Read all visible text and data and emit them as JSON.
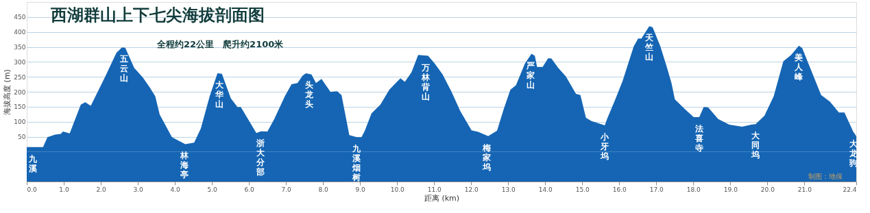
{
  "chart_data": {
    "type": "area",
    "title": "西湖群山上下七尖海拔剖面图",
    "subtitle": "全程约22公里　爬升约2100米",
    "xlabel": "距离 (km)",
    "ylabel": "海拔高度 (m)",
    "xlim": [
      0,
      22.4
    ],
    "ylim": [
      -100,
      500
    ],
    "grid": "y",
    "bands": [
      {
        "axis": "y",
        "from": -100,
        "to": 0,
        "color": "#1565b4"
      }
    ],
    "xticks": [
      {
        "value": 0,
        "label": "0.0"
      },
      {
        "value": 1,
        "label": "1.0"
      },
      {
        "value": 2,
        "label": "2.0"
      },
      {
        "value": 3,
        "label": "3.0"
      },
      {
        "value": 4,
        "label": "4.0"
      },
      {
        "value": 5,
        "label": "5.0"
      },
      {
        "value": 6,
        "label": "6.0"
      },
      {
        "value": 7,
        "label": "7.0"
      },
      {
        "value": 8,
        "label": "8.0"
      },
      {
        "value": 9,
        "label": "9.0"
      },
      {
        "value": 10,
        "label": "10.0"
      },
      {
        "value": 11,
        "label": "11.0"
      },
      {
        "value": 12,
        "label": "12.0"
      },
      {
        "value": 13,
        "label": "13.0"
      },
      {
        "value": 14,
        "label": "14.0"
      },
      {
        "value": 15,
        "label": "15.0"
      },
      {
        "value": 16,
        "label": "16.0"
      },
      {
        "value": 17,
        "label": "17.0"
      },
      {
        "value": 18,
        "label": "18.0"
      },
      {
        "value": 19,
        "label": "19.0"
      },
      {
        "value": 20,
        "label": "20.0"
      },
      {
        "value": 21,
        "label": "21.0"
      },
      {
        "value": 22.4,
        "label": "22.4"
      }
    ],
    "yticks": [
      50,
      100,
      150,
      200,
      250,
      300,
      350,
      400,
      450
    ],
    "series": [
      {
        "color": "#1565b4",
        "x": [
          0,
          0.17,
          0.44,
          0.56,
          0.77,
          0.92,
          0.98,
          1.16,
          1.46,
          1.58,
          1.73,
          1.88,
          2.12,
          2.42,
          2.57,
          2.66,
          2.9,
          3.14,
          3.32,
          3.47,
          3.59,
          3.92,
          4.28,
          4.52,
          4.7,
          4.94,
          5.15,
          5.27,
          5.51,
          5.69,
          5.78,
          6.2,
          6.32,
          6.5,
          6.68,
          6.97,
          7.15,
          7.31,
          7.45,
          7.54,
          7.69,
          7.81,
          7.96,
          8.2,
          8.38,
          8.5,
          8.71,
          8.91,
          9.04,
          9.13,
          9.31,
          9.55,
          9.79,
          10.09,
          10.21,
          10.39,
          10.57,
          10.69,
          10.84,
          11.02,
          11.23,
          11.47,
          11.71,
          12.01,
          12.19,
          12.46,
          12.7,
          12.88,
          13.06,
          13.21,
          13.45,
          13.63,
          13.72,
          13.78,
          13.93,
          14.08,
          14.17,
          14.35,
          14.56,
          14.83,
          14.95,
          15.1,
          15.25,
          15.61,
          15.67,
          15.88,
          16.09,
          16.39,
          16.51,
          16.6,
          16.81,
          16.9,
          17.11,
          17.29,
          17.41,
          17.5,
          17.77,
          18.01,
          18.16,
          18.28,
          18.4,
          18.67,
          18.97,
          19.32,
          19.56,
          19.68,
          19.92,
          20.17,
          20.43,
          20.64,
          20.85,
          20.94,
          21.18,
          21.45,
          21.69,
          21.93,
          22.08,
          22.32,
          22.4
        ],
        "values": [
          15,
          15,
          15,
          48,
          57,
          59,
          67,
          61,
          157,
          165,
          153,
          191,
          251,
          330,
          348,
          347,
          280,
          247,
          215,
          185,
          124,
          48,
          25,
          30,
          77,
          185,
          262,
          260,
          178,
          149,
          149,
          62,
          68,
          67,
          108,
          185,
          225,
          229,
          254,
          262,
          258,
          229,
          243,
          200,
          202,
          189,
          55,
          48,
          48,
          70,
          128,
          157,
          207,
          245,
          233,
          265,
          323,
          322,
          320,
          294,
          258,
          200,
          135,
          71,
          66,
          52,
          70,
          142,
          207,
          222,
          294,
          327,
          320,
          283,
          283,
          312,
          311,
          280,
          251,
          193,
          189,
          113,
          102,
          88,
          109,
          171,
          236,
          352,
          378,
          378,
          419,
          416,
          352,
          280,
          229,
          175,
          142,
          115,
          115,
          149,
          148,
          109,
          90,
          83,
          90,
          92,
          120,
          185,
          302,
          323,
          354,
          346,
          272,
          189,
          167,
          131,
          131,
          66,
          52
        ]
      }
    ],
    "annotations": [
      {
        "text": "九溪",
        "x": 0.17,
        "y": 15
      },
      {
        "text": "五云山",
        "x": 2.62,
        "y": 348
      },
      {
        "text": "林海亭",
        "x": 4.25,
        "y": 25
      },
      {
        "text": "大华山",
        "x": 5.2,
        "y": 262
      },
      {
        "text": "浙大分部",
        "x": 6.32,
        "y": 68
      },
      {
        "text": "头龙头",
        "x": 7.62,
        "y": 262
      },
      {
        "text": "九溪烟树",
        "x": 8.91,
        "y": 48
      },
      {
        "text": "万林背山",
        "x": 10.78,
        "y": 320
      },
      {
        "text": "梅家坞",
        "x": 12.42,
        "y": 52
      },
      {
        "text": "严家山",
        "x": 13.6,
        "y": 327
      },
      {
        "text": "小牙坞",
        "x": 15.6,
        "y": 88
      },
      {
        "text": "天竺山",
        "x": 16.81,
        "y": 419
      },
      {
        "text": "法喜寺",
        "x": 18.16,
        "y": 115
      },
      {
        "text": "大同坞",
        "x": 19.67,
        "y": 92
      },
      {
        "text": "美人峰",
        "x": 20.85,
        "y": 354
      },
      {
        "text": "大龙驹",
        "x": 22.32,
        "y": 66
      },
      "制图：地保"
    ]
  }
}
